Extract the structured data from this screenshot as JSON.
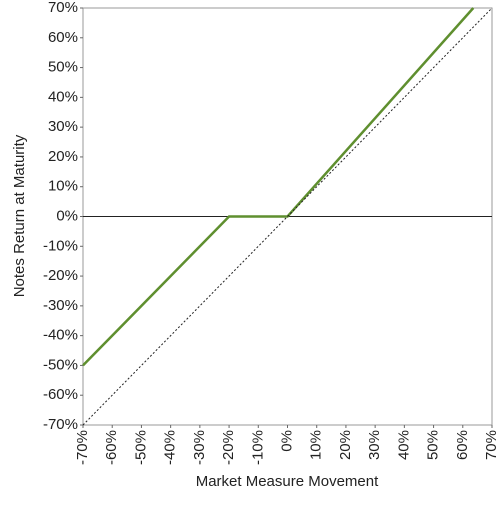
{
  "chart_data": {
    "type": "line",
    "xlabel": "Market Measure Movement",
    "ylabel": "Notes Return at Maturity",
    "series": [
      {
        "color": "#5f8f2f",
        "width": 2.5,
        "dash": false,
        "x": [
          -70,
          -20,
          0,
          63.6
        ],
        "values": [
          -50,
          0,
          0,
          70
        ]
      },
      {
        "color": "#222222",
        "width": 1,
        "dash": true,
        "x": [
          -70,
          70
        ],
        "values": [
          -70,
          70
        ]
      }
    ],
    "xlim": [
      -70,
      70
    ],
    "ylim": [
      -70,
      70
    ],
    "xticks": [
      {
        "value": -70,
        "label": "-70%"
      },
      {
        "value": -60,
        "label": "-60%"
      },
      {
        "value": -50,
        "label": "-50%"
      },
      {
        "value": -40,
        "label": "-40%"
      },
      {
        "value": -30,
        "label": "-30%"
      },
      {
        "value": -20,
        "label": "-20%"
      },
      {
        "value": -10,
        "label": "-10%"
      },
      {
        "value": 0,
        "label": "0%"
      },
      {
        "value": 10,
        "label": "10%"
      },
      {
        "value": 20,
        "label": "20%"
      },
      {
        "value": 30,
        "label": "30%"
      },
      {
        "value": 40,
        "label": "40%"
      },
      {
        "value": 50,
        "label": "50%"
      },
      {
        "value": 60,
        "label": "60%"
      },
      {
        "value": 70,
        "label": "70%"
      }
    ],
    "yticks": [
      {
        "value": 70,
        "label": "70%"
      },
      {
        "value": 60,
        "label": "60%"
      },
      {
        "value": 50,
        "label": "50%"
      },
      {
        "value": 40,
        "label": "40%"
      },
      {
        "value": 30,
        "label": "30%"
      },
      {
        "value": 20,
        "label": "20%"
      },
      {
        "value": 10,
        "label": "10%"
      },
      {
        "value": 0,
        "label": "0%"
      },
      {
        "value": -10,
        "label": "-10%"
      },
      {
        "value": -20,
        "label": "-20%"
      },
      {
        "value": -30,
        "label": "-30%"
      },
      {
        "value": -40,
        "label": "-40%"
      },
      {
        "value": -50,
        "label": "-50%"
      },
      {
        "value": -60,
        "label": "-60%"
      },
      {
        "value": -70,
        "label": "-70%"
      }
    ],
    "zero_line": true
  }
}
